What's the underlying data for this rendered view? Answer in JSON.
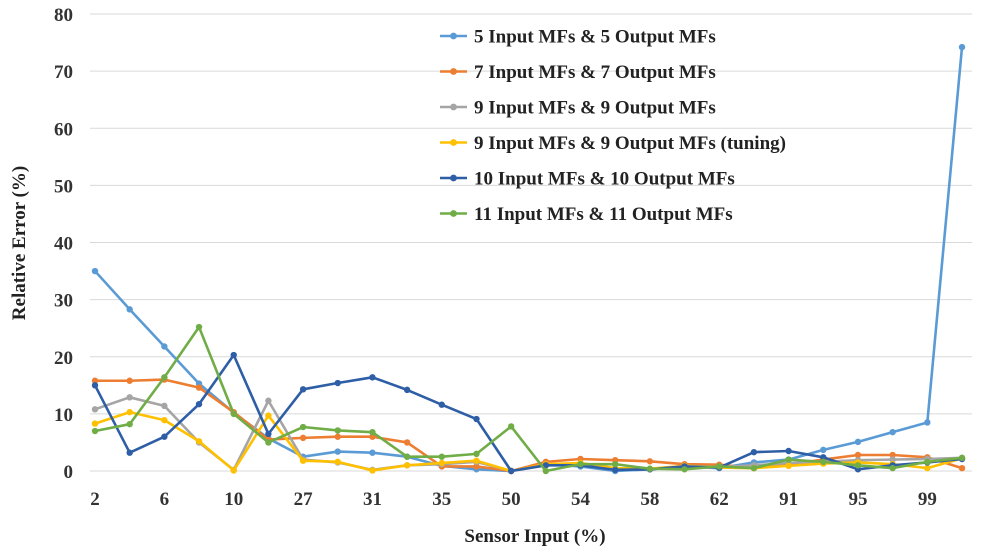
{
  "chart_data": {
    "type": "line",
    "title": "",
    "xlabel": "Sensor Input (%)",
    "ylabel": "Relative Error (%)",
    "ylim": [
      0,
      80
    ],
    "yticks": [
      0,
      10,
      20,
      30,
      40,
      50,
      60,
      70,
      80
    ],
    "grid": true,
    "legend_position": "top-right",
    "x_tick_labels": [
      "2",
      "6",
      "10",
      "27",
      "31",
      "35",
      "50",
      "54",
      "58",
      "62",
      "91",
      "95",
      "99"
    ],
    "series": [
      {
        "name": "5 Input MFs & 5 Output MFs",
        "color": "#5b9bd5",
        "values": [
          35,
          28.3,
          21.8,
          15.3,
          10.2,
          5.7,
          2.5,
          3.4,
          3.2,
          2.5,
          0.9,
          0.3,
          0,
          1.2,
          0.8,
          0,
          0.3,
          0.8,
          0.5,
          1.5,
          2,
          3.7,
          5.1,
          6.8,
          8.5,
          74.2
        ]
      },
      {
        "name": "7 Input MFs & 7 Output MFs",
        "color": "#ed7d31",
        "values": [
          15.8,
          15.8,
          16,
          14.6,
          10.3,
          5.5,
          5.8,
          6,
          6,
          5,
          0.8,
          0.8,
          0,
          1.6,
          2.1,
          1.9,
          1.7,
          1.2,
          1.1,
          0.5,
          1.1,
          2,
          2.8,
          2.8,
          2.4,
          0.5
        ]
      },
      {
        "name": "9 Input MFs & 9 Output MFs",
        "color": "#a5a5a5",
        "values": [
          10.8,
          12.9,
          11.4,
          5,
          0.2,
          12.3,
          2,
          1.5,
          0.2,
          1,
          1.2,
          1.6,
          0,
          1,
          1.2,
          0.4,
          0.3,
          0.9,
          0.7,
          1,
          1.4,
          1.6,
          1.9,
          2,
          2.1,
          2.3
        ]
      },
      {
        "name": "9 Input MFs & 9 Output MFs (tuning)",
        "color": "#ffc000",
        "values": [
          8.3,
          10.3,
          8.9,
          5.2,
          0.1,
          9.7,
          1.8,
          1.6,
          0.1,
          1,
          1.4,
          1.8,
          0,
          1.2,
          1.4,
          0.5,
          0.4,
          0.9,
          0.6,
          0.5,
          0.9,
          1.3,
          1.5,
          1.2,
          0.5,
          2.2
        ]
      },
      {
        "name": "10 Input MFs & 10 Output MFs",
        "color": "#2e5ea6",
        "values": [
          15,
          3.2,
          6,
          11.7,
          20.3,
          6.5,
          14.3,
          15.4,
          16.4,
          14.2,
          11.6,
          9.1,
          0,
          1,
          1,
          0.2,
          0.3,
          0.8,
          0.6,
          3.3,
          3.5,
          2.4,
          0.3,
          1,
          1.5,
          2.1
        ]
      },
      {
        "name": "11 Input MFs & 11 Output MFs",
        "color": "#70ad47",
        "values": [
          7,
          8.2,
          16.4,
          25.2,
          10,
          5,
          7.7,
          7.1,
          6.8,
          2.5,
          2.5,
          3,
          7.8,
          0,
          1.2,
          1.2,
          0.4,
          0.3,
          0.8,
          0.5,
          2,
          1.6,
          1,
          0.5,
          1.6,
          2.3
        ]
      }
    ]
  }
}
